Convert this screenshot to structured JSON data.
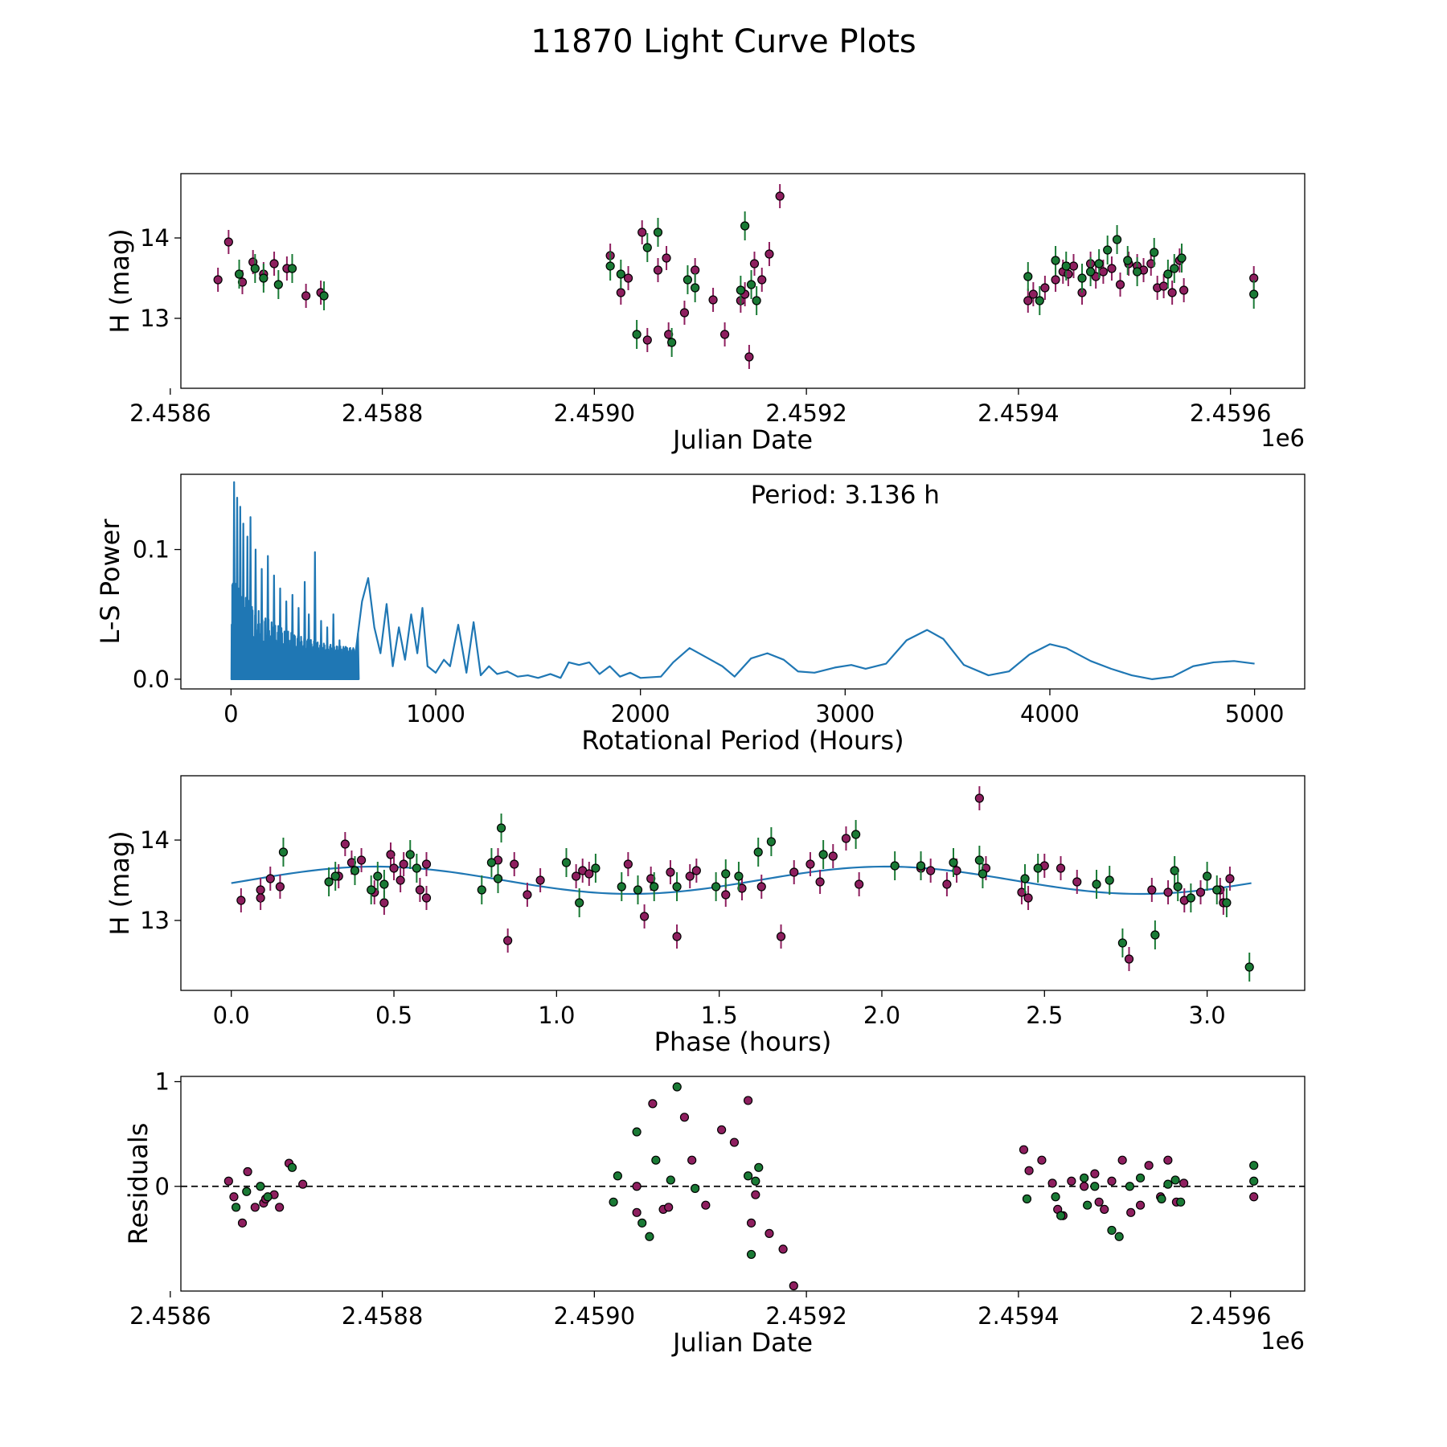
{
  "figure_title": "11870 Light Curve Plots",
  "colors": {
    "magenta": "#8e1f5f",
    "green": "#1a7a35",
    "line": "#1f77b4",
    "edge": "#000000",
    "frame": "#000000"
  },
  "chart_data": [
    {
      "type": "scatter",
      "id": "lightcurve",
      "xlabel": "Julian Date",
      "ylabel": "H (mag)",
      "offset_label": "1e6",
      "xlim": [
        2.45861,
        2.45967
      ],
      "ylim": [
        12.13,
        14.8
      ],
      "xticks": [
        2.4586,
        2.4588,
        2.459,
        2.4592,
        2.4594,
        2.4596
      ],
      "xtick_labels": [
        "2.4586",
        "2.4588",
        "2.4590",
        "2.4592",
        "2.4594",
        "2.4596"
      ],
      "yticks": [
        13,
        14
      ],
      "ytick_labels": [
        "13",
        "14"
      ],
      "series": [
        {
          "name": "magenta",
          "color_key": "magenta",
          "error": 0.15,
          "x": [
            2.458645,
            2.458655,
            2.458668,
            2.458678,
            2.458688,
            2.458698,
            2.45871,
            2.458728,
            2.458742,
            2.459015,
            2.459025,
            2.459032,
            2.459045,
            2.45905,
            2.45906,
            2.459068,
            2.45907,
            2.459085,
            2.459095,
            2.459112,
            2.459123,
            2.459138,
            2.459142,
            2.459146,
            2.459151,
            2.459158,
            2.459165,
            2.459175,
            2.459409,
            2.459414,
            2.459425,
            2.459435,
            2.459442,
            2.459447,
            2.459452,
            2.45946,
            2.459468,
            2.459473,
            2.45948,
            2.459488,
            2.459496,
            2.459504,
            2.459512,
            2.459518,
            2.459525,
            2.459531,
            2.459537,
            2.459545,
            2.459552,
            2.459556,
            2.459622
          ],
          "y": [
            13.48,
            13.95,
            13.45,
            13.7,
            13.55,
            13.68,
            13.62,
            13.28,
            13.32,
            13.78,
            13.32,
            13.5,
            14.07,
            12.73,
            13.6,
            13.75,
            12.8,
            13.07,
            13.6,
            13.23,
            12.8,
            13.22,
            13.3,
            12.52,
            13.68,
            13.48,
            13.8,
            14.52,
            13.22,
            13.3,
            13.38,
            13.48,
            13.58,
            13.55,
            13.65,
            13.32,
            13.68,
            13.52,
            13.58,
            13.62,
            13.42,
            13.68,
            13.65,
            13.6,
            13.68,
            13.38,
            13.4,
            13.32,
            13.72,
            13.35,
            13.5
          ]
        },
        {
          "name": "green",
          "color_key": "green",
          "error": 0.18,
          "x": [
            2.458665,
            2.45868,
            2.458688,
            2.458702,
            2.458715,
            2.458745,
            2.459015,
            2.459025,
            2.45904,
            2.45905,
            2.45906,
            2.459073,
            2.459088,
            2.459095,
            2.459138,
            2.459142,
            2.459148,
            2.459153,
            2.459409,
            2.45942,
            2.459435,
            2.459445,
            2.45946,
            2.459468,
            2.459476,
            2.459484,
            2.459493,
            2.459503,
            2.459512,
            2.459528,
            2.459541,
            2.459547,
            2.459554,
            2.459622
          ],
          "y": [
            13.55,
            13.62,
            13.5,
            13.42,
            13.62,
            13.28,
            13.65,
            13.55,
            12.8,
            13.88,
            14.07,
            12.7,
            13.48,
            13.38,
            13.35,
            14.15,
            13.42,
            13.22,
            13.52,
            13.22,
            13.72,
            13.65,
            13.5,
            13.58,
            13.68,
            13.85,
            13.98,
            13.72,
            13.58,
            13.82,
            13.55,
            13.62,
            13.75,
            13.3
          ]
        }
      ]
    },
    {
      "type": "line",
      "id": "periodogram",
      "xlabel": "Rotational Period (Hours)",
      "ylabel": "L-S Power",
      "annotation": "Period: 3.136 h",
      "xlim": [
        -245,
        5245
      ],
      "ylim": [
        -0.0075,
        0.158
      ],
      "xticks": [
        0,
        1000,
        2000,
        3000,
        4000,
        5000
      ],
      "xtick_labels": [
        "0",
        "1000",
        "2000",
        "3000",
        "4000",
        "5000"
      ],
      "yticks": [
        0.0,
        0.1
      ],
      "ytick_labels": [
        "0.0",
        "0.1"
      ],
      "peaks": [
        [
          15,
          0.152
        ],
        [
          30,
          0.14
        ],
        [
          45,
          0.133
        ],
        [
          60,
          0.12
        ],
        [
          80,
          0.11
        ],
        [
          95,
          0.125
        ],
        [
          120,
          0.1
        ],
        [
          150,
          0.085
        ],
        [
          180,
          0.095
        ],
        [
          210,
          0.08
        ],
        [
          240,
          0.07
        ],
        [
          270,
          0.06
        ],
        [
          300,
          0.065
        ],
        [
          330,
          0.055
        ],
        [
          360,
          0.075
        ],
        [
          380,
          0.05
        ],
        [
          410,
          0.098
        ],
        [
          440,
          0.045
        ],
        [
          470,
          0.04
        ],
        [
          500,
          0.05
        ],
        [
          530,
          0.03
        ],
        [
          560,
          0.025
        ],
        [
          590,
          0.02
        ],
        [
          620,
          0.035
        ]
      ],
      "smooth": [
        [
          600,
          0.01
        ],
        [
          640,
          0.06
        ],
        [
          670,
          0.078
        ],
        [
          700,
          0.04
        ],
        [
          730,
          0.02
        ],
        [
          760,
          0.058
        ],
        [
          790,
          0.01
        ],
        [
          820,
          0.04
        ],
        [
          850,
          0.015
        ],
        [
          880,
          0.05
        ],
        [
          910,
          0.02
        ],
        [
          935,
          0.055
        ],
        [
          960,
          0.01
        ],
        [
          1000,
          0.005
        ],
        [
          1040,
          0.015
        ],
        [
          1070,
          0.01
        ],
        [
          1110,
          0.042
        ],
        [
          1150,
          0.005
        ],
        [
          1185,
          0.044
        ],
        [
          1220,
          0.003
        ],
        [
          1260,
          0.01
        ],
        [
          1300,
          0.004
        ],
        [
          1350,
          0.006
        ],
        [
          1400,
          0.002
        ],
        [
          1450,
          0.003
        ],
        [
          1500,
          0.001
        ],
        [
          1560,
          0.004
        ],
        [
          1610,
          0.001
        ],
        [
          1650,
          0.013
        ],
        [
          1700,
          0.011
        ],
        [
          1750,
          0.013
        ],
        [
          1800,
          0.004
        ],
        [
          1850,
          0.01
        ],
        [
          1900,
          0.002
        ],
        [
          1950,
          0.005
        ],
        [
          2000,
          0.001
        ],
        [
          2100,
          0.002
        ],
        [
          2160,
          0.013
        ],
        [
          2240,
          0.024
        ],
        [
          2320,
          0.017
        ],
        [
          2400,
          0.01
        ],
        [
          2460,
          0.002
        ],
        [
          2540,
          0.016
        ],
        [
          2620,
          0.02
        ],
        [
          2700,
          0.015
        ],
        [
          2770,
          0.006
        ],
        [
          2850,
          0.005
        ],
        [
          2950,
          0.009
        ],
        [
          3030,
          0.011
        ],
        [
          3100,
          0.008
        ],
        [
          3200,
          0.012
        ],
        [
          3300,
          0.03
        ],
        [
          3400,
          0.038
        ],
        [
          3480,
          0.031
        ],
        [
          3580,
          0.011
        ],
        [
          3700,
          0.003
        ],
        [
          3800,
          0.006
        ],
        [
          3900,
          0.019
        ],
        [
          4000,
          0.027
        ],
        [
          4080,
          0.024
        ],
        [
          4200,
          0.014
        ],
        [
          4300,
          0.008
        ],
        [
          4400,
          0.003
        ],
        [
          4500,
          0.0
        ],
        [
          4600,
          0.002
        ],
        [
          4700,
          0.01
        ],
        [
          4800,
          0.013
        ],
        [
          4900,
          0.014
        ],
        [
          5000,
          0.012
        ]
      ]
    },
    {
      "type": "scatter",
      "id": "phasefold",
      "xlabel": "Phase (hours)",
      "ylabel": "H (mag)",
      "xlim": [
        -0.155,
        3.3
      ],
      "ylim": [
        12.13,
        14.8
      ],
      "xticks": [
        0.0,
        0.5,
        1.0,
        1.5,
        2.0,
        2.5,
        3.0
      ],
      "xtick_labels": [
        "0.0",
        "0.5",
        "1.0",
        "1.5",
        "2.0",
        "2.5",
        "3.0"
      ],
      "yticks": [
        13,
        14
      ],
      "ytick_labels": [
        "13",
        "14"
      ],
      "fit": {
        "mean": 13.5,
        "amplitude": 0.17,
        "period": 1.568,
        "phase": -0.21,
        "range": [
          0,
          3.136
        ]
      },
      "series": [
        {
          "name": "magenta",
          "color_key": "magenta",
          "error": 0.15,
          "x": [
            0.03,
            0.09,
            0.09,
            0.12,
            0.15,
            0.33,
            0.35,
            0.37,
            0.4,
            0.44,
            0.47,
            0.49,
            0.5,
            0.52,
            0.53,
            0.58,
            0.6,
            0.6,
            0.82,
            0.85,
            0.87,
            0.91,
            0.95,
            1.06,
            1.08,
            1.1,
            1.22,
            1.27,
            1.29,
            1.35,
            1.37,
            1.41,
            1.43,
            1.52,
            1.57,
            1.63,
            1.69,
            1.73,
            1.78,
            1.81,
            1.85,
            1.89,
            1.93,
            2.12,
            2.15,
            2.2,
            2.23,
            2.3,
            2.32,
            2.43,
            2.45,
            2.5,
            2.55,
            2.6,
            2.76,
            2.83,
            2.88,
            2.93,
            2.98,
            3.04,
            3.05,
            3.07
          ],
          "y": [
            13.25,
            13.28,
            13.38,
            13.52,
            13.42,
            13.55,
            13.95,
            13.72,
            13.75,
            13.35,
            13.22,
            13.82,
            13.65,
            13.5,
            13.7,
            13.38,
            13.28,
            13.7,
            13.75,
            12.75,
            13.7,
            13.32,
            13.5,
            13.55,
            13.62,
            13.58,
            13.7,
            13.05,
            13.52,
            13.6,
            12.8,
            13.55,
            13.62,
            13.32,
            13.4,
            13.42,
            12.8,
            13.6,
            13.7,
            13.48,
            13.8,
            14.02,
            13.45,
            13.65,
            13.62,
            13.45,
            13.62,
            14.52,
            13.65,
            13.35,
            13.28,
            13.68,
            13.65,
            13.48,
            12.52,
            13.38,
            13.35,
            13.25,
            13.35,
            13.38,
            13.22,
            13.52
          ]
        },
        {
          "name": "green",
          "color_key": "green",
          "error": 0.18,
          "x": [
            0.16,
            0.3,
            0.32,
            0.38,
            0.43,
            0.45,
            0.47,
            0.55,
            0.57,
            0.77,
            0.8,
            0.82,
            0.83,
            1.03,
            1.07,
            1.12,
            1.2,
            1.25,
            1.3,
            1.37,
            1.49,
            1.52,
            1.56,
            1.62,
            1.66,
            1.82,
            1.92,
            2.04,
            2.12,
            2.22,
            2.3,
            2.31,
            2.44,
            2.48,
            2.66,
            2.7,
            2.74,
            2.84,
            2.9,
            2.91,
            2.95,
            3.0,
            3.03,
            3.06,
            3.13
          ],
          "y": [
            13.85,
            13.48,
            13.55,
            13.62,
            13.38,
            13.55,
            13.45,
            13.82,
            13.65,
            13.38,
            13.72,
            13.52,
            14.15,
            13.72,
            13.22,
            13.65,
            13.42,
            13.38,
            13.42,
            13.42,
            13.42,
            13.58,
            13.55,
            13.85,
            13.98,
            13.82,
            14.07,
            13.68,
            13.68,
            13.72,
            13.75,
            13.58,
            13.52,
            13.65,
            13.45,
            13.5,
            12.72,
            12.82,
            13.62,
            13.42,
            13.28,
            13.55,
            13.38,
            13.22,
            12.42
          ]
        }
      ]
    },
    {
      "type": "scatter",
      "id": "residuals",
      "xlabel": "Julian Date",
      "ylabel": "Residuals",
      "offset_label": "1e6",
      "xlim": [
        2.45861,
        2.45967
      ],
      "ylim": [
        -1.0,
        1.05
      ],
      "xticks": [
        2.4586,
        2.4588,
        2.459,
        2.4592,
        2.4594,
        2.4596
      ],
      "xtick_labels": [
        "2.4586",
        "2.4588",
        "2.4590",
        "2.4592",
        "2.4594",
        "2.4596"
      ],
      "yticks": [
        0,
        1
      ],
      "ytick_labels": [
        "0",
        "1"
      ],
      "zero_line": true,
      "series": [
        {
          "name": "magenta",
          "color_key": "magenta",
          "x": [
            2.458655,
            2.45866,
            2.458668,
            2.458673,
            2.45868,
            2.458688,
            2.45869,
            2.458698,
            2.458703,
            2.458712,
            2.458725,
            2.45904,
            2.45904,
            2.459055,
            2.459065,
            2.45907,
            2.459085,
            2.459092,
            2.459105,
            2.45912,
            2.459132,
            2.459145,
            2.459148,
            2.459152,
            2.459165,
            2.459178,
            2.459188,
            2.459405,
            2.45941,
            2.459422,
            2.459432,
            2.459437,
            2.459442,
            2.45945,
            2.459462,
            2.459472,
            2.459476,
            2.459481,
            2.459488,
            2.459498,
            2.459506,
            2.459515,
            2.459523,
            2.459534,
            2.459541,
            2.459549,
            2.459556,
            2.459622
          ],
          "y": [
            0.05,
            -0.1,
            -0.35,
            0.14,
            -0.2,
            -0.16,
            -0.12,
            -0.08,
            -0.2,
            0.22,
            0.02,
            -0.25,
            0.0,
            0.79,
            -0.22,
            -0.2,
            0.66,
            0.25,
            -0.18,
            0.54,
            0.42,
            0.82,
            -0.35,
            -0.08,
            -0.45,
            -0.6,
            -0.95,
            0.35,
            0.15,
            0.25,
            0.03,
            -0.22,
            -0.28,
            0.05,
            0.0,
            0.12,
            -0.15,
            -0.22,
            0.05,
            0.25,
            -0.25,
            -0.18,
            0.2,
            -0.1,
            0.25,
            -0.15,
            0.03,
            -0.1
          ]
        },
        {
          "name": "green",
          "color_key": "green",
          "x": [
            2.458662,
            2.458672,
            2.458685,
            2.458692,
            2.458715,
            2.459018,
            2.459022,
            2.45904,
            2.459045,
            2.459052,
            2.459058,
            2.459072,
            2.459078,
            2.459095,
            2.459145,
            2.459148,
            2.459152,
            2.459155,
            2.459408,
            2.459435,
            2.45944,
            2.459462,
            2.459465,
            2.459472,
            2.459488,
            2.459495,
            2.459505,
            2.459515,
            2.459535,
            2.459541,
            2.459548,
            2.459553,
            2.459622,
            2.459622
          ],
          "y": [
            -0.2,
            -0.05,
            0.0,
            -0.1,
            0.18,
            -0.15,
            0.1,
            0.52,
            -0.35,
            -0.48,
            0.25,
            0.06,
            0.95,
            -0.02,
            0.1,
            -0.65,
            0.05,
            0.18,
            -0.12,
            -0.1,
            -0.28,
            0.08,
            -0.18,
            0.0,
            -0.42,
            -0.48,
            0.0,
            0.08,
            -0.12,
            0.02,
            0.06,
            -0.15,
            0.05,
            0.2
          ]
        }
      ]
    }
  ]
}
